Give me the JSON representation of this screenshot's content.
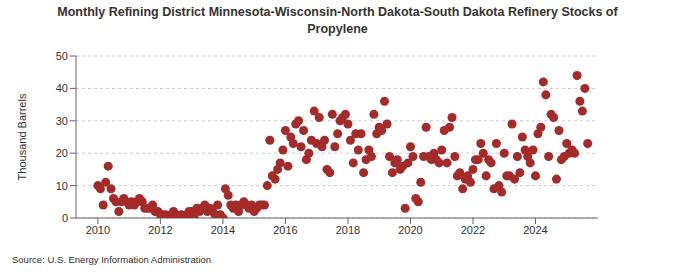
{
  "chart_data": {
    "type": "scatter",
    "title": "Monthly Refining District Minnesota-Wisconsin-North Dakota-South Dakota Refinery Stocks of Propylene",
    "y_label": "Thousand Barrels",
    "source": "Source: U.S. Energy Information Administration",
    "color": "#a52a2a",
    "marker": "circle",
    "grid": true,
    "xlim": [
      2009.3,
      2026
    ],
    "xticks": [
      2010,
      2012,
      2014,
      2016,
      2018,
      2020,
      2022,
      2024
    ],
    "ylim": [
      0,
      50
    ],
    "yticks": [
      0,
      10,
      20,
      30,
      40,
      50
    ],
    "x": [
      2010,
      2010.08,
      2010.17,
      2010.25,
      2010.33,
      2010.42,
      2010.5,
      2010.58,
      2010.67,
      2010.75,
      2010.83,
      2010.92,
      2011,
      2011.08,
      2011.17,
      2011.25,
      2011.33,
      2011.42,
      2011.5,
      2011.58,
      2011.67,
      2011.75,
      2011.83,
      2011.92,
      2012,
      2012.08,
      2012.17,
      2012.25,
      2012.33,
      2012.42,
      2012.5,
      2012.58,
      2012.67,
      2012.75,
      2012.83,
      2012.92,
      2013,
      2013.08,
      2013.17,
      2013.25,
      2013.33,
      2013.42,
      2013.5,
      2013.58,
      2013.67,
      2013.75,
      2013.83,
      2013.92,
      2014,
      2014.08,
      2014.17,
      2014.25,
      2014.33,
      2014.42,
      2014.5,
      2014.58,
      2014.67,
      2014.75,
      2014.83,
      2014.92,
      2015,
      2015.08,
      2015.17,
      2015.25,
      2015.33,
      2015.42,
      2015.5,
      2015.58,
      2015.67,
      2015.75,
      2015.83,
      2015.92,
      2016,
      2016.08,
      2016.17,
      2016.25,
      2016.33,
      2016.42,
      2016.5,
      2016.58,
      2016.67,
      2016.75,
      2016.83,
      2016.92,
      2017,
      2017.08,
      2017.17,
      2017.25,
      2017.33,
      2017.42,
      2017.5,
      2017.58,
      2017.67,
      2017.75,
      2017.83,
      2017.92,
      2018,
      2018.08,
      2018.17,
      2018.25,
      2018.33,
      2018.42,
      2018.5,
      2018.58,
      2018.67,
      2018.75,
      2018.83,
      2018.92,
      2019,
      2019.08,
      2019.17,
      2019.25,
      2019.33,
      2019.42,
      2019.5,
      2019.58,
      2019.67,
      2019.75,
      2019.83,
      2019.92,
      2020,
      2020.08,
      2020.17,
      2020.25,
      2020.33,
      2020.42,
      2020.5,
      2020.58,
      2020.67,
      2020.75,
      2020.83,
      2020.92,
      2021,
      2021.08,
      2021.17,
      2021.25,
      2021.33,
      2021.42,
      2021.5,
      2021.58,
      2021.67,
      2021.75,
      2021.83,
      2021.92,
      2022,
      2022.08,
      2022.17,
      2022.25,
      2022.33,
      2022.42,
      2022.5,
      2022.58,
      2022.67,
      2022.75,
      2022.83,
      2022.92,
      2023,
      2023.08,
      2023.17,
      2023.25,
      2023.33,
      2023.42,
      2023.5,
      2023.58,
      2023.67,
      2023.75,
      2023.83,
      2023.92,
      2024,
      2024.08,
      2024.17,
      2024.25,
      2024.33,
      2024.42,
      2024.5,
      2024.58,
      2024.67,
      2024.75,
      2024.83,
      2024.92,
      2025,
      2025.08,
      2025.17,
      2025.25,
      2025.33,
      2025.42,
      2025.5,
      2025.58,
      2025.67
    ],
    "values": [
      10,
      9,
      4,
      11,
      16,
      9,
      6,
      5,
      2,
      5,
      6,
      5,
      4,
      5,
      4,
      5,
      6,
      5,
      3,
      3,
      3,
      4,
      2,
      2,
      1,
      1,
      1,
      0,
      1,
      2,
      1,
      0,
      1,
      0,
      1,
      2,
      2,
      0,
      3,
      2,
      3,
      4,
      2,
      3,
      2,
      1,
      4,
      1,
      0,
      9,
      7,
      4,
      3,
      4,
      2,
      4,
      5,
      4,
      3,
      4,
      2,
      3,
      4,
      4,
      4,
      10,
      24,
      13,
      12,
      15,
      17,
      21,
      27,
      16,
      25,
      23,
      29,
      30,
      22,
      27,
      18,
      20,
      24,
      33,
      23,
      31,
      22,
      24,
      15,
      14,
      32,
      22,
      26,
      30,
      31,
      32,
      29,
      24,
      17,
      26,
      21,
      26,
      14,
      18,
      21,
      19,
      32,
      26,
      28,
      27,
      36,
      29,
      19,
      14,
      17,
      18,
      15,
      16,
      3,
      17,
      22,
      19,
      6,
      5,
      11,
      19,
      28,
      19,
      18,
      20,
      18,
      17,
      21,
      27,
      17,
      28,
      31,
      19,
      13,
      14,
      9,
      12,
      13,
      11,
      15,
      18,
      18,
      23,
      20,
      13,
      18,
      17,
      9,
      23,
      10,
      8,
      20,
      13,
      13,
      29,
      12,
      19,
      14,
      25,
      21,
      19,
      17,
      21,
      13,
      26,
      28,
      42,
      38,
      19,
      32,
      31,
      12,
      27,
      18,
      19,
      23,
      20,
      21,
      20,
      44,
      36,
      33,
      40,
      23
    ]
  }
}
